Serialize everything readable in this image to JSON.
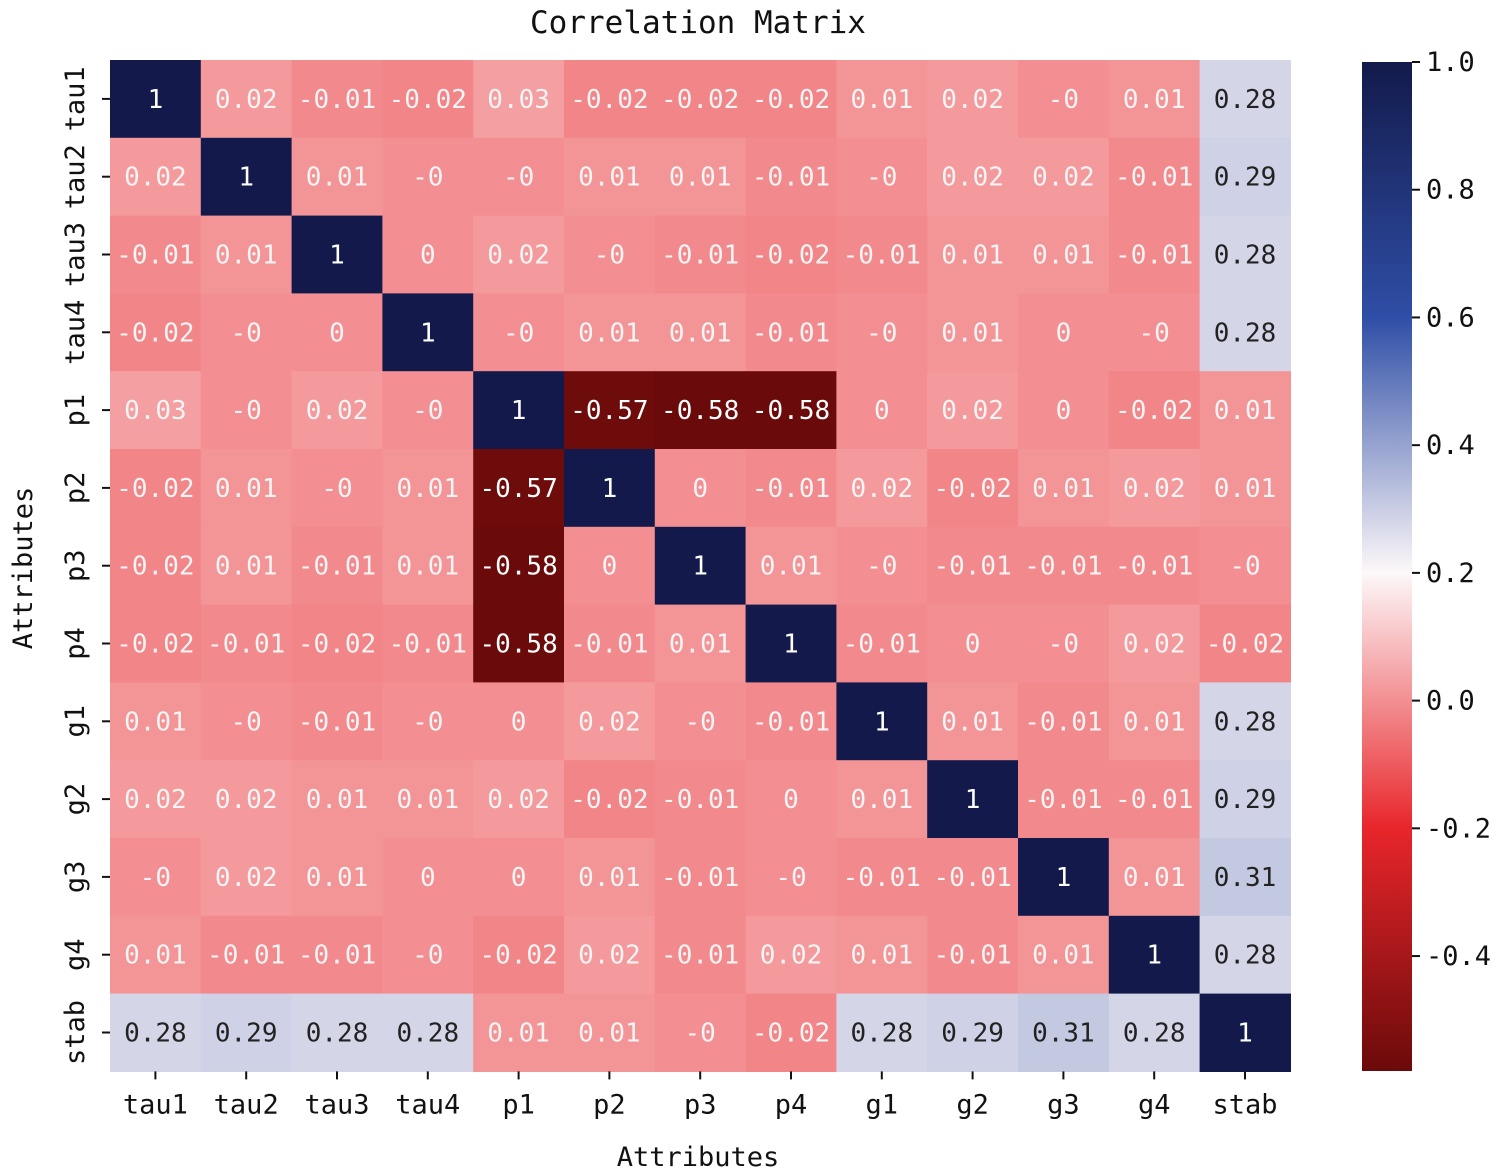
{
  "chart_data": {
    "type": "heatmap",
    "title": "Correlation Matrix",
    "xlabel": "Attributes",
    "ylabel": "Attributes",
    "columns": [
      "tau1",
      "tau2",
      "tau3",
      "tau4",
      "p1",
      "p2",
      "p3",
      "p4",
      "g1",
      "g2",
      "g3",
      "g4",
      "stab"
    ],
    "rows": [
      "tau1",
      "tau2",
      "tau3",
      "tau4",
      "p1",
      "p2",
      "p3",
      "p4",
      "g1",
      "g2",
      "g3",
      "g4",
      "stab"
    ],
    "cells": [
      [
        "1",
        "0.02",
        "-0.01",
        "-0.02",
        "0.03",
        "-0.02",
        "-0.02",
        "-0.02",
        "0.01",
        "0.02",
        "-0",
        "0.01",
        "0.28"
      ],
      [
        "0.02",
        "1",
        "0.01",
        "-0",
        "-0",
        "0.01",
        "0.01",
        "-0.01",
        "-0",
        "0.02",
        "0.02",
        "-0.01",
        "0.29"
      ],
      [
        "-0.01",
        "0.01",
        "1",
        "0",
        "0.02",
        "-0",
        "-0.01",
        "-0.02",
        "-0.01",
        "0.01",
        "0.01",
        "-0.01",
        "0.28"
      ],
      [
        "-0.02",
        "-0",
        "0",
        "1",
        "-0",
        "0.01",
        "0.01",
        "-0.01",
        "-0",
        "0.01",
        "0",
        "-0",
        "0.28"
      ],
      [
        "0.03",
        "-0",
        "0.02",
        "-0",
        "1",
        "-0.57",
        "-0.58",
        "-0.58",
        "0",
        "0.02",
        "0",
        "-0.02",
        "0.01"
      ],
      [
        "-0.02",
        "0.01",
        "-0",
        "0.01",
        "-0.57",
        "1",
        "0",
        "-0.01",
        "0.02",
        "-0.02",
        "0.01",
        "0.02",
        "0.01"
      ],
      [
        "-0.02",
        "0.01",
        "-0.01",
        "0.01",
        "-0.58",
        "0",
        "1",
        "0.01",
        "-0",
        "-0.01",
        "-0.01",
        "-0.01",
        "-0"
      ],
      [
        "-0.02",
        "-0.01",
        "-0.02",
        "-0.01",
        "-0.58",
        "-0.01",
        "0.01",
        "1",
        "-0.01",
        "0",
        "-0",
        "0.02",
        "-0.02"
      ],
      [
        "0.01",
        "-0",
        "-0.01",
        "-0",
        "0",
        "0.02",
        "-0",
        "-0.01",
        "1",
        "0.01",
        "-0.01",
        "0.01",
        "0.28"
      ],
      [
        "0.02",
        "0.02",
        "0.01",
        "0.01",
        "0.02",
        "-0.02",
        "-0.01",
        "0",
        "0.01",
        "1",
        "-0.01",
        "-0.01",
        "0.29"
      ],
      [
        "-0",
        "0.02",
        "0.01",
        "0",
        "0",
        "0.01",
        "-0.01",
        "-0",
        "-0.01",
        "-0.01",
        "1",
        "0.01",
        "0.31"
      ],
      [
        "0.01",
        "-0.01",
        "-0.01",
        "-0",
        "-0.02",
        "0.02",
        "-0.01",
        "0.02",
        "0.01",
        "-0.01",
        "0.01",
        "1",
        "0.28"
      ],
      [
        "0.28",
        "0.29",
        "0.28",
        "0.28",
        "0.01",
        "0.01",
        "-0",
        "-0.02",
        "0.28",
        "0.29",
        "0.31",
        "0.28",
        "1"
      ]
    ],
    "colorbar": {
      "vmin": -0.58,
      "vmax": 1.0,
      "ticks": [
        1.0,
        0.8,
        0.6,
        0.4,
        0.2,
        0.0,
        -0.2,
        -0.4
      ],
      "tick_labels": [
        "1.0",
        "0.8",
        "0.6",
        "0.4",
        "0.2",
        "0.0",
        "-0.2",
        "-0.4"
      ],
      "colors": {
        "low": "#6b0a0a",
        "mid_red": "#e8262b",
        "white": "#fdf8f9",
        "mid_blue": "#2f4ea6",
        "high": "#131a4b"
      }
    }
  }
}
